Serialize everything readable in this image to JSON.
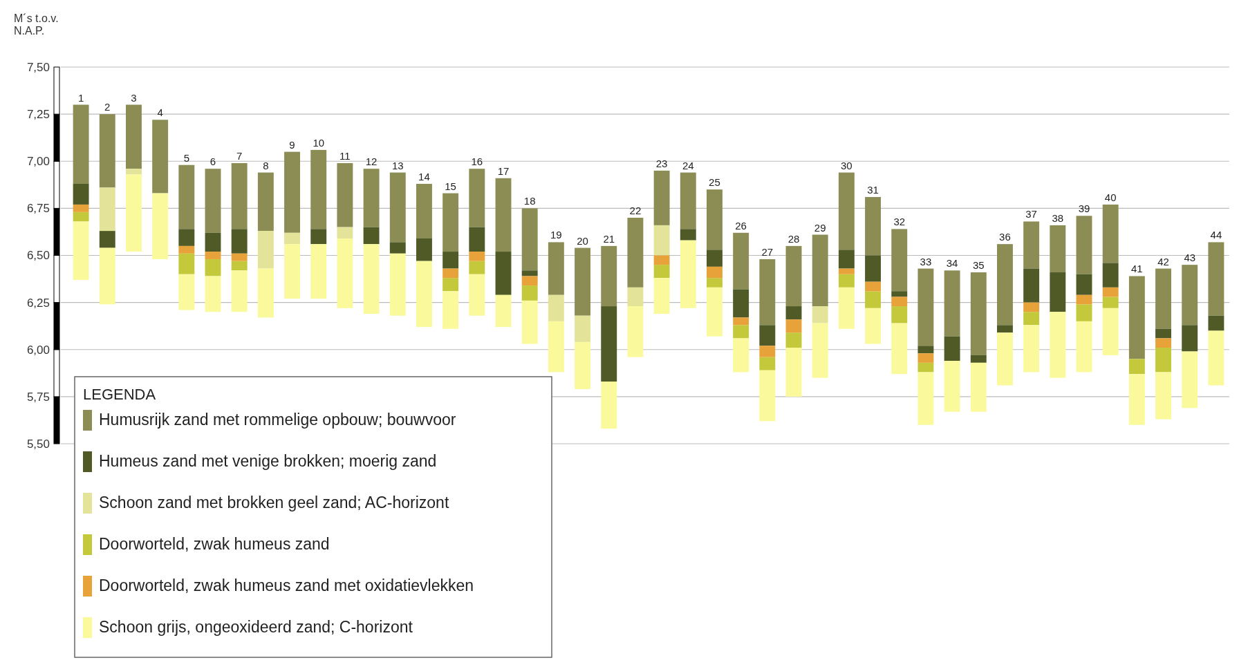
{
  "chart_data": {
    "type": "bar",
    "ylabel": "M´s t.o.v. N.A.P.",
    "legend_title": "LEGENDA",
    "legend": "bottom left",
    "grid": "y",
    "ylim": [
      5.5,
      7.5
    ],
    "yticks": [
      {
        "value": 5.5,
        "label": "5,50"
      },
      {
        "value": 5.75,
        "label": "5,75"
      },
      {
        "value": 6,
        "label": "6,00"
      },
      {
        "value": 6.25,
        "label": "6,25"
      },
      {
        "value": 6.5,
        "label": "6,50"
      },
      {
        "value": 6.75,
        "label": "6,75"
      },
      {
        "value": 7,
        "label": "7,00"
      },
      {
        "value": 7.25,
        "label": "7,25"
      },
      {
        "value": 7.5,
        "label": "7,50"
      }
    ],
    "categories": [
      "1",
      "2",
      "3",
      "4",
      "5",
      "6",
      "7",
      "8",
      "9",
      "10",
      "11",
      "12",
      "13",
      "14",
      "15",
      "16",
      "17",
      "18",
      "19",
      "20",
      "21",
      "22",
      "23",
      "24",
      "25",
      "26",
      "27",
      "28",
      "29",
      "30",
      "31",
      "32",
      "33",
      "34",
      "35",
      "36",
      "37",
      "38",
      "39",
      "40",
      "41",
      "42",
      "43",
      "44"
    ],
    "series": [
      {
        "name": "Humusrijk zand met rommelige opbouw; bouwvoor",
        "color": "#8b8d55",
        "base": [
          6.88,
          6.86,
          6.96,
          6.83,
          6.64,
          6.62,
          6.64,
          6.63,
          6.62,
          6.64,
          6.65,
          6.65,
          6.57,
          6.59,
          6.52,
          6.65,
          6.52,
          6.42,
          6.29,
          6.18,
          6.23,
          6.33,
          6.66,
          6.64,
          6.53,
          6.32,
          6.13,
          6.23,
          6.23,
          6.53,
          6.5,
          6.31,
          6.02,
          6.07,
          5.97,
          6.13,
          6.43,
          6.41,
          6.4,
          6.46,
          5.95,
          6.11,
          6.13,
          6.18
        ],
        "values": [
          0.42,
          0.39,
          0.34,
          0.39,
          0.34,
          0.34,
          0.35,
          0.31,
          0.43,
          0.42,
          0.34,
          0.31,
          0.37,
          0.29,
          0.31,
          0.31,
          0.39,
          0.33,
          0.28,
          0.36,
          0.32,
          0.37,
          0.29,
          0.3,
          0.32,
          0.3,
          0.35,
          0.32,
          0.38,
          0.41,
          0.31,
          0.33,
          0.41,
          0.35,
          0.44,
          0.43,
          0.25,
          0.25,
          0.31,
          0.31,
          0.44,
          0.32,
          0.32,
          0.39
        ]
      },
      {
        "name": "Humeus zand met venige brokken; moerig zand",
        "color": "#4f5a26",
        "base": [
          6.77,
          6.54,
          null,
          null,
          6.55,
          6.52,
          6.51,
          null,
          null,
          6.56,
          null,
          6.56,
          6.51,
          6.47,
          6.43,
          6.52,
          6.29,
          6.39,
          null,
          null,
          5.83,
          null,
          null,
          6.58,
          6.44,
          6.17,
          6.02,
          6.16,
          null,
          6.43,
          6.36,
          6.28,
          5.98,
          5.94,
          5.93,
          6.09,
          6.25,
          6.2,
          6.29,
          6.33,
          null,
          6.06,
          5.99,
          6.1
        ],
        "values": [
          0.11,
          0.09,
          null,
          null,
          0.09,
          0.1,
          0.13,
          null,
          null,
          0.08,
          null,
          0.09,
          0.06,
          0.12,
          0.09,
          0.13,
          0.23,
          0.03,
          null,
          null,
          0.4,
          null,
          null,
          0.06,
          0.09,
          0.15,
          0.11,
          0.07,
          null,
          0.1,
          0.14,
          0.03,
          0.04,
          0.13,
          0.04,
          0.04,
          0.18,
          0.21,
          0.11,
          0.13,
          null,
          0.05,
          0.14,
          0.08
        ]
      },
      {
        "name": "Schoon zand met brokken geel zand; AC-horizont",
        "color": "#e3e39a",
        "base": [
          null,
          6.63,
          6.93,
          null,
          null,
          null,
          null,
          6.43,
          6.56,
          null,
          6.59,
          null,
          null,
          null,
          null,
          null,
          null,
          null,
          6.15,
          6.04,
          null,
          6.23,
          6.5,
          null,
          null,
          null,
          null,
          null,
          6.14,
          null,
          null,
          null,
          null,
          null,
          null,
          null,
          null,
          null,
          null,
          null,
          null,
          null,
          null,
          null
        ],
        "values": [
          null,
          0.23,
          0.03,
          null,
          null,
          null,
          null,
          0.2,
          0.06,
          null,
          0.06,
          null,
          null,
          null,
          null,
          null,
          null,
          null,
          0.14,
          0.14,
          null,
          0.1,
          0.16,
          null,
          null,
          null,
          null,
          null,
          0.09,
          null,
          null,
          null,
          null,
          null,
          null,
          null,
          null,
          null,
          null,
          null,
          null,
          null,
          null,
          null
        ]
      },
      {
        "name": "Doorworteld, zwak humeus zand",
        "color": "#c3c93a",
        "base": [
          6.68,
          null,
          null,
          null,
          6.4,
          6.39,
          6.42,
          null,
          null,
          null,
          null,
          null,
          null,
          null,
          6.31,
          6.4,
          null,
          6.26,
          null,
          null,
          null,
          null,
          6.38,
          null,
          6.33,
          6.06,
          5.89,
          6.01,
          null,
          6.33,
          6.22,
          6.14,
          5.88,
          null,
          null,
          null,
          6.13,
          null,
          6.15,
          6.22,
          5.87,
          5.88,
          null,
          null
        ],
        "values": [
          0.05,
          null,
          null,
          null,
          0.11,
          0.09,
          0.05,
          null,
          null,
          null,
          null,
          null,
          null,
          null,
          0.07,
          0.07,
          null,
          0.08,
          null,
          null,
          null,
          null,
          0.07,
          null,
          0.05,
          0.07,
          0.07,
          0.08,
          null,
          0.07,
          0.09,
          0.09,
          0.05,
          null,
          null,
          null,
          0.07,
          null,
          0.09,
          0.06,
          0.08,
          0.13,
          null,
          null
        ]
      },
      {
        "name": "Doorworteld, zwak humeus zand met oxidatievlekken",
        "color": "#e8a23a",
        "base": [
          6.73,
          null,
          null,
          null,
          6.51,
          6.48,
          6.47,
          null,
          null,
          null,
          null,
          null,
          null,
          null,
          6.38,
          6.47,
          null,
          6.34,
          null,
          null,
          null,
          null,
          6.45,
          null,
          6.38,
          6.13,
          5.96,
          6.09,
          null,
          6.4,
          6.31,
          6.23,
          5.93,
          null,
          null,
          null,
          6.2,
          null,
          6.24,
          6.28,
          null,
          6.01,
          null,
          null
        ],
        "values": [
          0.04,
          null,
          null,
          null,
          0.04,
          0.04,
          0.04,
          null,
          null,
          null,
          null,
          null,
          null,
          null,
          0.05,
          0.05,
          null,
          0.05,
          null,
          null,
          null,
          null,
          0.05,
          null,
          0.06,
          0.04,
          0.06,
          0.07,
          null,
          0.03,
          0.05,
          0.05,
          0.05,
          null,
          null,
          null,
          0.05,
          null,
          0.05,
          0.05,
          null,
          0.05,
          null,
          null
        ]
      },
      {
        "name": "Schoon grijs, ongeoxideerd zand; C-horizont",
        "color": "#fafa9c",
        "base": [
          6.37,
          6.24,
          6.52,
          6.48,
          6.21,
          6.2,
          6.2,
          6.17,
          6.27,
          6.27,
          6.22,
          6.19,
          6.18,
          6.12,
          6.11,
          6.18,
          6.12,
          6.03,
          5.88,
          5.79,
          5.58,
          5.96,
          6.19,
          6.22,
          6.07,
          5.88,
          5.62,
          5.75,
          5.85,
          6.11,
          6.03,
          5.87,
          5.6,
          5.67,
          5.67,
          5.81,
          5.88,
          5.85,
          5.88,
          5.97,
          5.6,
          5.63,
          5.69,
          5.81
        ],
        "values": [
          0.31,
          0.3,
          0.41,
          0.35,
          0.19,
          0.19,
          0.22,
          0.26,
          0.29,
          0.29,
          0.37,
          0.37,
          0.33,
          0.35,
          0.2,
          0.22,
          0.17,
          0.23,
          0.27,
          0.25,
          0.25,
          0.27,
          0.19,
          0.36,
          0.26,
          0.18,
          0.27,
          0.26,
          0.29,
          0.22,
          0.19,
          0.27,
          0.28,
          0.27,
          0.26,
          0.28,
          0.25,
          0.35,
          0.27,
          0.25,
          0.27,
          0.25,
          0.3,
          0.29
        ]
      }
    ]
  }
}
